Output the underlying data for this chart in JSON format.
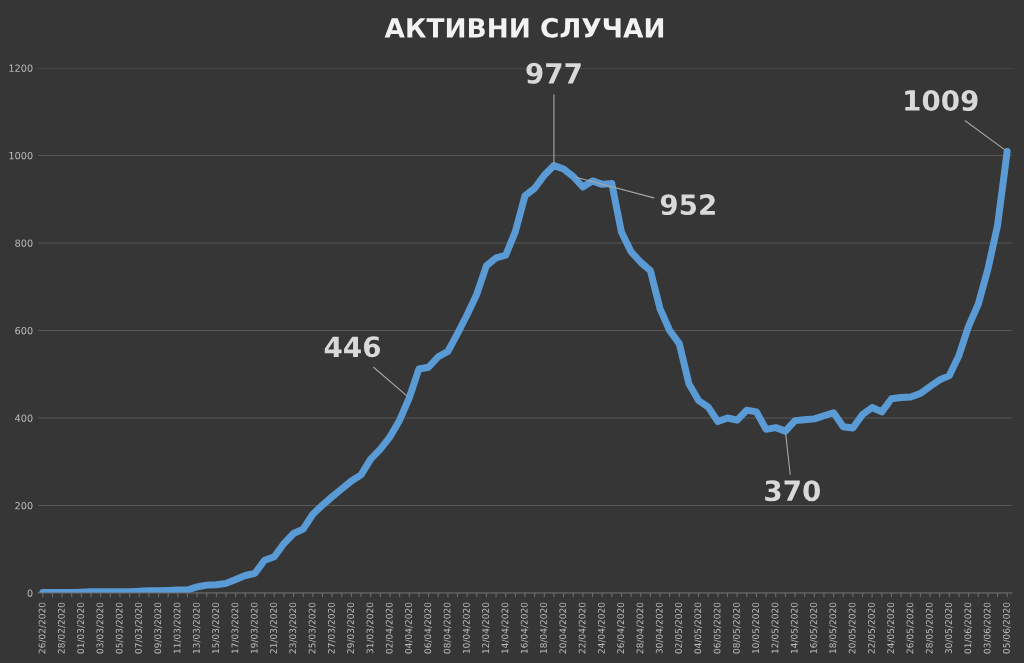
{
  "chart_data": {
    "type": "line",
    "title": "АКТИВНИ СЛУЧАИ",
    "categories": [
      "26/02/2020",
      null,
      "28/02/2020",
      null,
      "01/03/2020",
      null,
      "03/03/2020",
      null,
      "05/03/2020",
      null,
      "07/03/2020",
      null,
      "09/03/2020",
      null,
      "11/03/2020",
      null,
      "13/03/2020",
      null,
      "15/03/2020",
      null,
      "17/03/2020",
      null,
      "19/03/2020",
      null,
      "21/03/2020",
      null,
      "23/03/2020",
      null,
      "25/03/2020",
      null,
      "27/03/2020",
      null,
      "29/03/2020",
      null,
      "31/03/2020",
      null,
      "02/04/2020",
      null,
      "04/04/2020",
      null,
      "06/04/2020",
      null,
      "08/04/2020",
      null,
      "10/04/2020",
      null,
      "12/04/2020",
      null,
      "14/04/2020",
      null,
      "16/04/2020",
      null,
      "18/04/2020",
      null,
      "20/04/2020",
      null,
      "22/04/2020",
      null,
      "24/04/2020",
      null,
      "26/04/2020",
      null,
      "28/04/2020",
      null,
      "30/04/2020",
      null,
      "02/05/2020",
      null,
      "04/05/2020",
      null,
      "06/05/2020",
      null,
      "08/05/2020",
      null,
      "10/05/2020",
      null,
      "12/05/2020",
      null,
      "14/05/2020",
      null,
      "16/05/2020",
      null,
      "18/05/2020",
      null,
      "20/05/2020",
      null,
      "22/05/2020",
      null,
      "24/05/2020",
      null,
      "26/05/2020",
      null,
      "28/05/2020",
      null,
      "30/05/2020",
      null,
      "01/06/2020",
      null,
      "03/06/2020",
      null,
      "05/06/2020"
    ],
    "series": [
      {
        "color": "#5b9bd5",
        "values": [
          1,
          1,
          1,
          1,
          2,
          3,
          3,
          3,
          3,
          3,
          4,
          5,
          5,
          6,
          7,
          7,
          14,
          18,
          19,
          22,
          31,
          40,
          45,
          75,
          83,
          113,
          136,
          146,
          180,
          201,
          220,
          238,
          256,
          270,
          306,
          329,
          357,
          395,
          446,
          512,
          516,
          540,
          552,
          593,
          636,
          683,
          748,
          766,
          772,
          826,
          908,
          925,
          955,
          977,
          969,
          952,
          928,
          942,
          934,
          936,
          825,
          780,
          756,
          737,
          650,
          600,
          570,
          478,
          440,
          425,
          392,
          400,
          395,
          418,
          414,
          374,
          378,
          370,
          394,
          396,
          398,
          405,
          412,
          380,
          377,
          408,
          424,
          414,
          444,
          447,
          448,
          456,
          472,
          487,
          497,
          543,
          610,
          660,
          740,
          840,
          1009
        ],
        "value_labels": [
          null,
          null,
          null,
          null,
          null,
          null,
          null,
          null,
          null,
          null,
          null,
          null,
          null,
          null,
          null,
          null,
          null,
          null,
          null,
          null,
          null,
          null,
          null,
          null,
          null,
          null,
          null,
          null,
          null,
          null,
          null,
          null,
          null,
          null,
          null,
          null,
          null,
          null,
          "446",
          null,
          null,
          null,
          null,
          null,
          null,
          null,
          null,
          null,
          null,
          null,
          null,
          null,
          null,
          "977",
          null,
          "952",
          null,
          null,
          null,
          null,
          null,
          null,
          null,
          null,
          null,
          null,
          null,
          null,
          null,
          null,
          null,
          null,
          null,
          null,
          null,
          null,
          null,
          "370",
          null,
          null,
          null,
          null,
          null,
          null,
          null,
          null,
          null,
          null,
          null,
          null,
          null,
          null,
          null,
          null,
          null,
          null,
          null,
          null,
          null,
          null,
          "1009"
        ]
      }
    ],
    "ylim": [
      0,
      1200
    ],
    "yticks": [
      0,
      200,
      400,
      600,
      800,
      1000,
      1200
    ],
    "grid": "y",
    "legend": false,
    "marker": "none",
    "line_style": "solid"
  }
}
